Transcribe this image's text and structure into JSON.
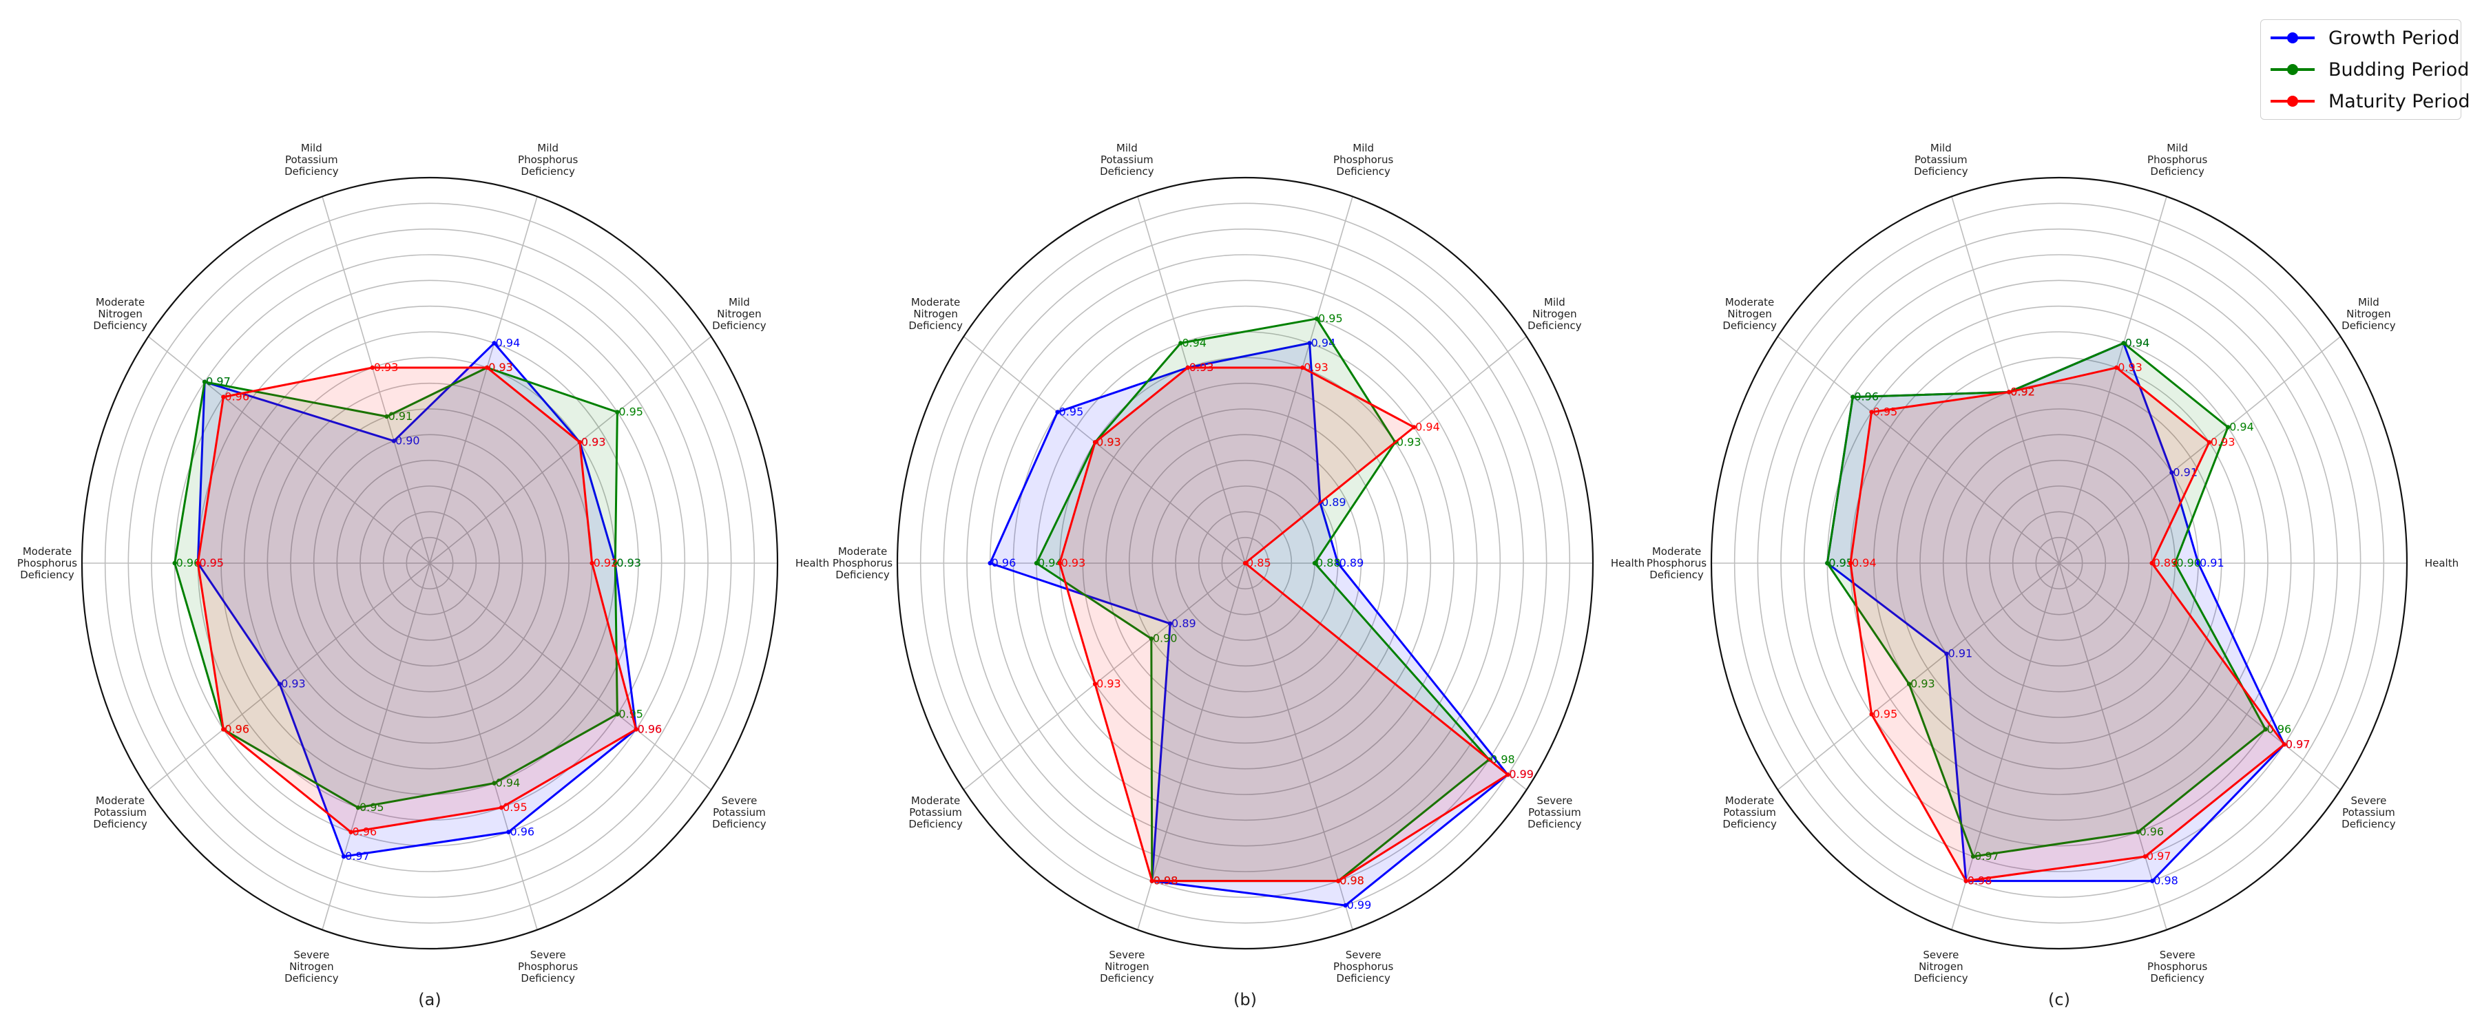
{
  "legend": {
    "series": [
      {
        "name": "Growth Period",
        "color": "#0000ff"
      },
      {
        "name": "Budding Period",
        "color": "#008000"
      },
      {
        "name": "Maturity Period",
        "color": "#ff0000"
      }
    ]
  },
  "chart_data": [
    {
      "type": "radar",
      "caption": "(a)",
      "categories": [
        "Health",
        "Mild Nitrogen Deficiency",
        "Mild Phosphorus Deficiency",
        "Mild Potassium Deficiency",
        "Moderate Nitrogen Deficiency",
        "Moderate Phosphorus Deficiency",
        "Moderate Potassium Deficiency",
        "Severe Nitrogen Deficiency",
        "Severe Phosphorus Deficiency",
        "Severe Potassium Deficiency"
      ],
      "rlim": [
        0.85,
        1.0
      ],
      "grid": true,
      "series": [
        {
          "name": "Growth Period",
          "values": [
            0.93,
            0.93,
            0.94,
            0.9,
            0.97,
            0.95,
            0.93,
            0.97,
            0.96,
            0.96
          ]
        },
        {
          "name": "Budding Period",
          "values": [
            0.93,
            0.95,
            0.93,
            0.91,
            0.97,
            0.96,
            0.96,
            0.95,
            0.94,
            0.95
          ]
        },
        {
          "name": "Maturity Period",
          "values": [
            0.92,
            0.93,
            0.93,
            0.93,
            0.96,
            0.95,
            0.96,
            0.96,
            0.95,
            0.96
          ]
        }
      ]
    },
    {
      "type": "radar",
      "caption": "(b)",
      "categories": [
        "Health",
        "Mild Nitrogen Deficiency",
        "Mild Phosphorus Deficiency",
        "Mild Potassium Deficiency",
        "Moderate Nitrogen Deficiency",
        "Moderate Phosphorus Deficiency",
        "Moderate Potassium Deficiency",
        "Severe Nitrogen Deficiency",
        "Severe Phosphorus Deficiency",
        "Severe Potassium Deficiency"
      ],
      "rlim": [
        0.85,
        1.0
      ],
      "grid": true,
      "series": [
        {
          "name": "Growth Period",
          "values": [
            0.89,
            0.89,
            0.94,
            0.93,
            0.95,
            0.96,
            0.89,
            0.98,
            0.99,
            0.99
          ]
        },
        {
          "name": "Budding Period",
          "values": [
            0.88,
            0.93,
            0.95,
            0.94,
            0.93,
            0.94,
            0.9,
            0.98,
            0.98,
            0.98
          ]
        },
        {
          "name": "Maturity Period",
          "values": [
            0.85,
            0.94,
            0.93,
            0.93,
            0.93,
            0.93,
            0.93,
            0.98,
            0.98,
            0.99
          ]
        }
      ]
    },
    {
      "type": "radar",
      "caption": "(c)",
      "categories": [
        "Health",
        "Mild Nitrogen Deficiency",
        "Mild Phosphorus Deficiency",
        "Mild Potassium Deficiency",
        "Moderate Nitrogen Deficiency",
        "Moderate Phosphorus Deficiency",
        "Moderate Potassium Deficiency",
        "Severe Nitrogen Deficiency",
        "Severe Phosphorus Deficiency",
        "Severe Potassium Deficiency"
      ],
      "rlim": [
        0.85,
        1.0
      ],
      "grid": true,
      "series": [
        {
          "name": "Growth Period",
          "values": [
            0.91,
            0.91,
            0.94,
            0.92,
            0.96,
            0.95,
            0.91,
            0.98,
            0.98,
            0.97
          ]
        },
        {
          "name": "Budding Period",
          "values": [
            0.9,
            0.94,
            0.94,
            0.92,
            0.96,
            0.95,
            0.93,
            0.97,
            0.96,
            0.96
          ]
        },
        {
          "name": "Maturity Period",
          "values": [
            0.89,
            0.93,
            0.93,
            0.92,
            0.95,
            0.94,
            0.95,
            0.98,
            0.97,
            0.97
          ]
        }
      ]
    }
  ]
}
